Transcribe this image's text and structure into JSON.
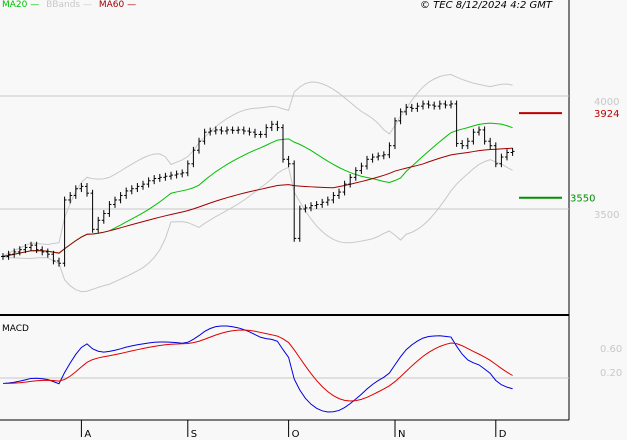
{
  "chart_data": {
    "type": "line",
    "title": "",
    "copyright": "© TEC 8/12/2024 4:2 GMT",
    "legend": [
      {
        "name": "MA20",
        "color": "#00c000"
      },
      {
        "name": "BBands",
        "color": "#c8c8c8"
      },
      {
        "name": "MA60",
        "color": "#a00000"
      }
    ],
    "legend_placement": "top-left",
    "ylim": [
      3200,
      4200
    ],
    "y_ticks": [
      {
        "value": 4000,
        "label": "4000"
      },
      {
        "value": 3500,
        "label": "3500"
      }
    ],
    "x_ticks": [
      {
        "index": 14,
        "label": "A"
      },
      {
        "index": 33,
        "label": "S"
      },
      {
        "index": 51,
        "label": "O"
      },
      {
        "index": 70,
        "label": "N"
      },
      {
        "index": 88,
        "label": "D"
      }
    ],
    "levels": [
      {
        "value": 3924,
        "label": "3924",
        "color": "#c00000"
      },
      {
        "value": 3550,
        "label": "3550",
        "color": "#009000"
      }
    ],
    "closes": [
      3290,
      3300,
      3310,
      3320,
      3330,
      3340,
      3320,
      3310,
      3300,
      3270,
      3260,
      3540,
      3560,
      3590,
      3600,
      3570,
      3410,
      3450,
      3480,
      3520,
      3540,
      3560,
      3580,
      3590,
      3600,
      3610,
      3625,
      3635,
      3640,
      3645,
      3650,
      3655,
      3660,
      3700,
      3760,
      3800,
      3840,
      3845,
      3850,
      3845,
      3850,
      3848,
      3850,
      3845,
      3840,
      3830,
      3830,
      3860,
      3875,
      3860,
      3720,
      3700,
      3370,
      3500,
      3505,
      3515,
      3520,
      3530,
      3540,
      3560,
      3575,
      3610,
      3640,
      3670,
      3690,
      3720,
      3730,
      3735,
      3740,
      3780,
      3890,
      3930,
      3950,
      3945,
      3955,
      3965,
      3960,
      3955,
      3965,
      3960,
      3965,
      3790,
      3780,
      3800,
      3840,
      3850,
      3800,
      3780,
      3700,
      3730,
      3750,
      3755
    ],
    "macd": {
      "label": "MACD",
      "y_ticks": [
        {
          "value": 0.6,
          "label": "0.60"
        },
        {
          "value": 0.2,
          "label": "0.20"
        }
      ],
      "line_color": "#0000e0",
      "signal_color": "#e00000"
    }
  }
}
